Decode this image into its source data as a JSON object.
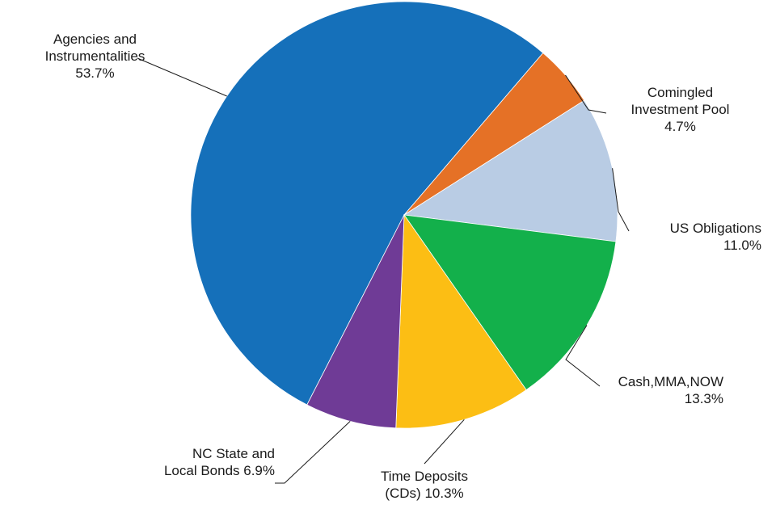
{
  "chart_data": {
    "type": "pie",
    "title": "",
    "slices": [
      {
        "name": "Agencies and Instrumentalities",
        "value": 53.7,
        "color": "#1570BA",
        "label_lines": [
          "Agencies and",
          "Instrumentalities",
          "53.7%"
        ]
      },
      {
        "name": "Comingled Investment Pool",
        "value": 4.7,
        "color": "#E57126",
        "label_lines": [
          "Comingled",
          "Investment Pool",
          "4.7%"
        ]
      },
      {
        "name": "US Obligations",
        "value": 11.0,
        "color": "#B9CCE4",
        "label_lines": [
          "US Obligations",
          "11.0%"
        ]
      },
      {
        "name": "Cash,MMA,NOW",
        "value": 13.3,
        "color": "#13B04B",
        "label_lines": [
          "Cash,MMA,NOW",
          "13.3%"
        ]
      },
      {
        "name": "Time Deposits (CDs)",
        "value": 10.3,
        "color": "#FCBE14",
        "label_lines": [
          "Time Deposits",
          "(CDs) 10.3%"
        ]
      },
      {
        "name": "NC State and Local Bonds",
        "value": 6.9,
        "color": "#6F3B96",
        "label_lines": [
          "NC State and",
          "Local Bonds 6.9%"
        ]
      }
    ],
    "start_slice_ending_at": "top-right",
    "direction": "clockwise",
    "legend": "none"
  }
}
